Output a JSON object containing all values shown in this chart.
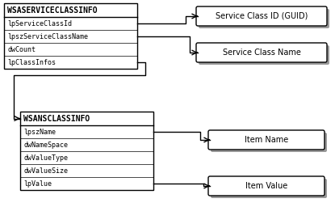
{
  "bg_color": "#f0f0f0",
  "box1": {
    "title": "WSASERVICECLASSINFO",
    "rows": [
      "lpServiceClassId",
      "lpszServiceClassName",
      "dwCount",
      "lpClassInfos"
    ]
  },
  "box2": {
    "title": "WSANSCLASSINFO",
    "rows": [
      "lpszName",
      "dwNameSpace",
      "dwValueType",
      "dwValueSize",
      "lpValue"
    ]
  },
  "bubble1_label": "Service Class ID (GUID)",
  "bubble2_label": "Service Class Name",
  "bubble3_label": "Item Name",
  "bubble4_label": "Item Value"
}
